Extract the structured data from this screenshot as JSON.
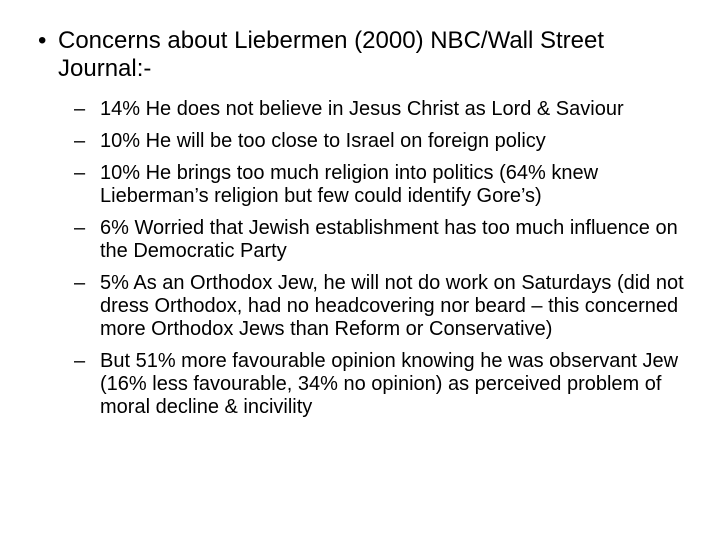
{
  "slide": {
    "bullet_marker": "•",
    "heading": "Concerns about Liebermen (2000) NBC/Wall Street Journal:-",
    "dash_marker": "–",
    "items": [
      "14% He does not believe in Jesus Christ as Lord & Saviour",
      "10% He will be too close to Israel on foreign policy",
      "10% He brings too much religion into politics (64% knew Lieberman’s religion but few could identify Gore’s)",
      "6% Worried that Jewish establishment has too much influence on the Democratic Party",
      "5% As an Orthodox Jew, he will not do work on Saturdays (did not dress Orthodox, had no headcovering nor beard – this concerned more Orthodox Jews than Reform or Conservative)",
      "But 51% more favourable opinion knowing he was observant Jew (16% less favourable, 34% no opinion) as perceived problem of moral decline & incivility"
    ]
  }
}
